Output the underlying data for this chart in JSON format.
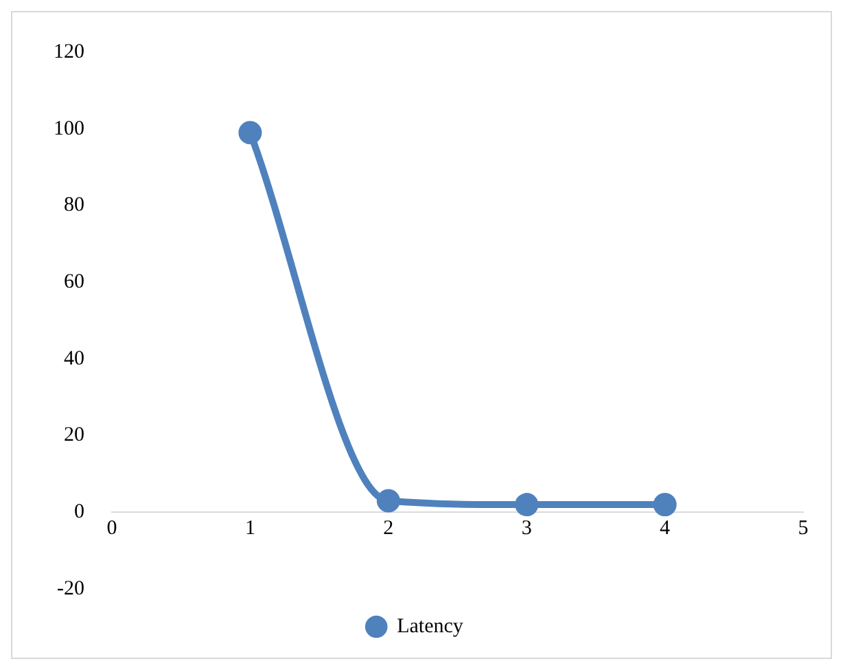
{
  "chart_data": {
    "type": "line",
    "x": [
      1,
      2,
      3,
      4
    ],
    "series": [
      {
        "name": "Latency",
        "color": "#4f81bd",
        "values": [
          99,
          3,
          2,
          2
        ]
      }
    ],
    "xlim": [
      0,
      5
    ],
    "xticks": [
      0,
      1,
      2,
      3,
      4,
      5
    ],
    "ylim": [
      -20,
      120
    ],
    "yticks": [
      -20,
      0,
      20,
      40,
      60,
      80,
      100,
      120
    ],
    "grid": false,
    "legend": "bottom",
    "marker": "circle",
    "line_style": "solid"
  }
}
